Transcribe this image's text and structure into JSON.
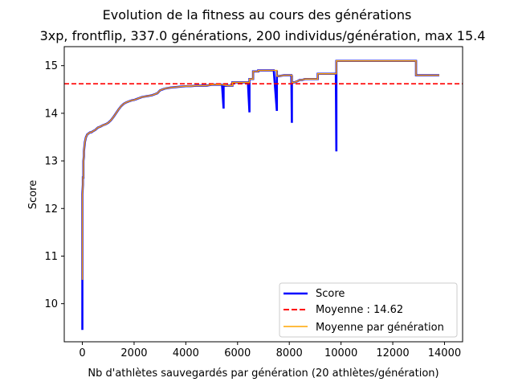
{
  "chart_data": {
    "type": "line",
    "title": "Evolution de la fitness au cours des générations",
    "subtitle": "3xp, frontflip, 337.0 générations, 200 individus/génération, max 15.4",
    "xlabel": "Nb d'athlètes sauvegardés par génération (20 athlètes/génération)",
    "ylabel": "Score",
    "xlim": [
      -700,
      14700
    ],
    "ylim": [
      9.2,
      15.4
    ],
    "xticks": [
      0,
      2000,
      4000,
      6000,
      8000,
      10000,
      12000,
      14000
    ],
    "yticks": [
      10,
      11,
      12,
      13,
      14,
      15
    ],
    "grid": false,
    "legend_position": "lower-right",
    "legend": [
      "Score",
      "Moyenne : 14.62",
      "Moyenne par génération"
    ],
    "series": [
      {
        "name": "Score",
        "color": "#0000ff",
        "style": "solid",
        "x": [
          0,
          0,
          0,
          20,
          20,
          40,
          40,
          60,
          60,
          80,
          100,
          120,
          140,
          160,
          180,
          200,
          250,
          300,
          350,
          400,
          500,
          600,
          700,
          800,
          900,
          1000,
          1100,
          1200,
          1300,
          1400,
          1500,
          1600,
          1700,
          1800,
          1900,
          2000,
          2100,
          2200,
          2300,
          2400,
          2500,
          2600,
          2700,
          2800,
          2900,
          3000,
          3100,
          3200,
          3400,
          3600,
          3800,
          4000,
          4200,
          4400,
          4600,
          4800,
          5000,
          5200,
          5400,
          5460,
          5460,
          5460,
          5600,
          5800,
          5800,
          6000,
          6200,
          6400,
          6460,
          6460,
          6460,
          6600,
          6600,
          6800,
          6800,
          7000,
          7200,
          7400,
          7520,
          7520,
          7520,
          7600,
          7800,
          8000,
          8080,
          8100,
          8100,
          8100,
          8200,
          8300,
          8400,
          8500,
          8600,
          8800,
          9000,
          9100,
          9100,
          9300,
          9500,
          9800,
          9820,
          9820,
          9820,
          9900,
          10000,
          11000,
          12000,
          12900,
          12900,
          13200,
          13500,
          13800
        ],
        "y": [
          9.45,
          10.5,
          12.3,
          12.5,
          12.65,
          12.65,
          13.0,
          13.1,
          13.2,
          13.3,
          13.4,
          13.45,
          13.5,
          13.52,
          13.55,
          13.56,
          13.58,
          13.6,
          13.6,
          13.62,
          13.65,
          13.7,
          13.72,
          13.75,
          13.77,
          13.8,
          13.85,
          13.92,
          14.0,
          14.08,
          14.15,
          14.2,
          14.23,
          14.25,
          14.27,
          14.28,
          14.3,
          14.32,
          14.34,
          14.35,
          14.36,
          14.37,
          14.38,
          14.4,
          14.42,
          14.48,
          14.5,
          14.52,
          14.54,
          14.55,
          14.56,
          14.57,
          14.57,
          14.58,
          14.58,
          14.58,
          14.6,
          14.6,
          14.6,
          14.1,
          14.6,
          14.58,
          14.58,
          14.58,
          14.65,
          14.65,
          14.65,
          14.65,
          14.02,
          14.65,
          14.72,
          14.72,
          14.88,
          14.88,
          14.9,
          14.9,
          14.9,
          14.9,
          14.05,
          14.9,
          14.78,
          14.78,
          14.8,
          14.8,
          14.8,
          13.8,
          14.8,
          14.65,
          14.65,
          14.67,
          14.7,
          14.7,
          14.72,
          14.72,
          14.72,
          14.72,
          14.83,
          14.83,
          14.83,
          14.83,
          13.2,
          15.1,
          15.1,
          15.1,
          15.1,
          15.1,
          15.1,
          15.1,
          14.8,
          14.8,
          14.8,
          14.8
        ]
      },
      {
        "name": "Moyenne : 14.62",
        "color": "#ff0000",
        "style": "dashed",
        "y_constant": 14.62
      },
      {
        "name": "Moyenne par génération",
        "color": "#ffa500",
        "style": "solid",
        "x": [
          0,
          0,
          20,
          20,
          40,
          40,
          60,
          60,
          80,
          100,
          120,
          140,
          160,
          180,
          200,
          250,
          300,
          350,
          400,
          500,
          600,
          700,
          800,
          900,
          1000,
          1100,
          1200,
          1300,
          1400,
          1500,
          1600,
          1700,
          1800,
          1900,
          2000,
          2100,
          2200,
          2300,
          2400,
          2500,
          2600,
          2700,
          2800,
          2900,
          3000,
          3100,
          3200,
          3400,
          3600,
          3800,
          4000,
          4200,
          4400,
          4600,
          4800,
          5000,
          5200,
          5400,
          5600,
          5800,
          5800,
          6000,
          6200,
          6400,
          6460,
          6460,
          6600,
          6600,
          6800,
          6800,
          7000,
          7200,
          7400,
          7520,
          7520,
          7600,
          7800,
          8000,
          8100,
          8100,
          8200,
          8300,
          8400,
          8500,
          8600,
          8800,
          9000,
          9100,
          9100,
          9300,
          9500,
          9800,
          9820,
          9820,
          9900,
          10000,
          11000,
          12000,
          12900,
          12900,
          13200,
          13500,
          13800
        ],
        "y": [
          10.5,
          12.3,
          12.5,
          12.65,
          12.65,
          13.0,
          13.1,
          13.2,
          13.3,
          13.4,
          13.45,
          13.5,
          13.52,
          13.55,
          13.56,
          13.58,
          13.6,
          13.6,
          13.62,
          13.65,
          13.7,
          13.72,
          13.75,
          13.77,
          13.8,
          13.85,
          13.92,
          14.0,
          14.08,
          14.15,
          14.2,
          14.23,
          14.25,
          14.27,
          14.28,
          14.3,
          14.32,
          14.34,
          14.35,
          14.36,
          14.37,
          14.38,
          14.4,
          14.42,
          14.48,
          14.5,
          14.52,
          14.54,
          14.55,
          14.56,
          14.57,
          14.57,
          14.58,
          14.58,
          14.58,
          14.6,
          14.6,
          14.6,
          14.58,
          14.58,
          14.65,
          14.65,
          14.65,
          14.65,
          14.65,
          14.72,
          14.72,
          14.88,
          14.88,
          14.9,
          14.9,
          14.9,
          14.9,
          14.9,
          14.78,
          14.78,
          14.8,
          14.8,
          14.8,
          14.65,
          14.65,
          14.67,
          14.7,
          14.7,
          14.72,
          14.72,
          14.72,
          14.72,
          14.83,
          14.83,
          14.83,
          14.83,
          14.83,
          15.1,
          15.1,
          15.1,
          15.1,
          15.1,
          15.1,
          14.8,
          14.8,
          14.8,
          14.8
        ]
      }
    ]
  }
}
